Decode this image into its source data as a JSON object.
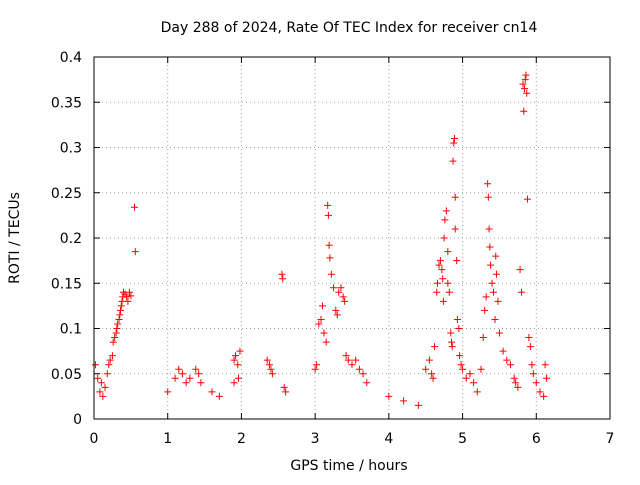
{
  "chart_data": {
    "type": "scatter",
    "title": "Day 288 of 2024, Rate Of TEC Index for receiver cn14",
    "xlabel": "GPS time / hours",
    "ylabel": "ROTI / TECUs",
    "xlim": [
      0,
      7
    ],
    "ylim": [
      0,
      0.4
    ],
    "x_ticks": [
      "0",
      "1",
      "2",
      "3",
      "4",
      "5",
      "6",
      "7"
    ],
    "y_ticks": [
      "0",
      "0.05",
      "0.1",
      "0.15",
      "0.2",
      "0.25",
      "0.3",
      "0.35",
      "0.4"
    ],
    "grid": true,
    "marker": "+",
    "marker_color": "#ff0000",
    "series": [
      {
        "name": "ROTI",
        "points": [
          [
            0.02,
            0.06
          ],
          [
            0.05,
            0.045
          ],
          [
            0.08,
            0.03
          ],
          [
            0.1,
            0.04
          ],
          [
            0.12,
            0.025
          ],
          [
            0.15,
            0.035
          ],
          [
            0.18,
            0.05
          ],
          [
            0.2,
            0.06
          ],
          [
            0.22,
            0.065
          ],
          [
            0.25,
            0.07
          ],
          [
            0.26,
            0.085
          ],
          [
            0.28,
            0.09
          ],
          [
            0.3,
            0.095
          ],
          [
            0.31,
            0.1
          ],
          [
            0.32,
            0.105
          ],
          [
            0.34,
            0.11
          ],
          [
            0.35,
            0.115
          ],
          [
            0.36,
            0.12
          ],
          [
            0.37,
            0.125
          ],
          [
            0.38,
            0.13
          ],
          [
            0.39,
            0.135
          ],
          [
            0.4,
            0.14
          ],
          [
            0.42,
            0.138
          ],
          [
            0.44,
            0.135
          ],
          [
            0.46,
            0.13
          ],
          [
            0.48,
            0.14
          ],
          [
            0.5,
            0.136
          ],
          [
            0.55,
            0.234
          ],
          [
            0.56,
            0.185
          ],
          [
            1.0,
            0.03
          ],
          [
            1.1,
            0.045
          ],
          [
            1.15,
            0.055
          ],
          [
            1.2,
            0.05
          ],
          [
            1.25,
            0.04
          ],
          [
            1.3,
            0.045
          ],
          [
            1.38,
            0.055
          ],
          [
            1.42,
            0.05
          ],
          [
            1.45,
            0.04
          ],
          [
            1.6,
            0.03
          ],
          [
            1.7,
            0.025
          ],
          [
            1.9,
            0.065
          ],
          [
            1.92,
            0.07
          ],
          [
            1.95,
            0.06
          ],
          [
            1.98,
            0.075
          ],
          [
            1.9,
            0.04
          ],
          [
            1.96,
            0.045
          ],
          [
            2.35,
            0.065
          ],
          [
            2.38,
            0.06
          ],
          [
            2.4,
            0.055
          ],
          [
            2.42,
            0.05
          ],
          [
            2.55,
            0.16
          ],
          [
            2.56,
            0.155
          ],
          [
            2.58,
            0.035
          ],
          [
            2.6,
            0.03
          ],
          [
            3.0,
            0.055
          ],
          [
            3.02,
            0.06
          ],
          [
            3.05,
            0.105
          ],
          [
            3.08,
            0.11
          ],
          [
            3.1,
            0.125
          ],
          [
            3.12,
            0.095
          ],
          [
            3.15,
            0.085
          ],
          [
            3.17,
            0.236
          ],
          [
            3.18,
            0.225
          ],
          [
            3.19,
            0.192
          ],
          [
            3.2,
            0.178
          ],
          [
            3.22,
            0.16
          ],
          [
            3.25,
            0.145
          ],
          [
            3.28,
            0.12
          ],
          [
            3.3,
            0.115
          ],
          [
            3.32,
            0.14
          ],
          [
            3.35,
            0.145
          ],
          [
            3.38,
            0.135
          ],
          [
            3.4,
            0.13
          ],
          [
            3.42,
            0.07
          ],
          [
            3.45,
            0.065
          ],
          [
            3.5,
            0.06
          ],
          [
            3.55,
            0.065
          ],
          [
            3.6,
            0.055
          ],
          [
            3.65,
            0.05
          ],
          [
            3.7,
            0.04
          ],
          [
            4.0,
            0.025
          ],
          [
            4.2,
            0.02
          ],
          [
            4.4,
            0.015
          ],
          [
            4.5,
            0.055
          ],
          [
            4.55,
            0.065
          ],
          [
            4.58,
            0.05
          ],
          [
            4.6,
            0.045
          ],
          [
            4.62,
            0.08
          ],
          [
            4.65,
            0.14
          ],
          [
            4.66,
            0.15
          ],
          [
            4.68,
            0.17
          ],
          [
            4.7,
            0.175
          ],
          [
            4.72,
            0.165
          ],
          [
            4.73,
            0.155
          ],
          [
            4.74,
            0.13
          ],
          [
            4.75,
            0.2
          ],
          [
            4.76,
            0.22
          ],
          [
            4.78,
            0.23
          ],
          [
            4.8,
            0.185
          ],
          [
            4.8,
            0.15
          ],
          [
            4.82,
            0.14
          ],
          [
            4.84,
            0.095
          ],
          [
            4.85,
            0.085
          ],
          [
            4.86,
            0.08
          ],
          [
            4.87,
            0.285
          ],
          [
            4.88,
            0.305
          ],
          [
            4.89,
            0.31
          ],
          [
            4.9,
            0.245
          ],
          [
            4.9,
            0.21
          ],
          [
            4.92,
            0.175
          ],
          [
            4.93,
            0.11
          ],
          [
            4.95,
            0.1
          ],
          [
            4.96,
            0.07
          ],
          [
            4.98,
            0.06
          ],
          [
            5.0,
            0.055
          ],
          [
            5.05,
            0.045
          ],
          [
            5.1,
            0.05
          ],
          [
            5.15,
            0.04
          ],
          [
            5.2,
            0.03
          ],
          [
            5.25,
            0.055
          ],
          [
            5.28,
            0.09
          ],
          [
            5.3,
            0.12
          ],
          [
            5.32,
            0.135
          ],
          [
            5.34,
            0.26
          ],
          [
            5.35,
            0.245
          ],
          [
            5.36,
            0.21
          ],
          [
            5.37,
            0.19
          ],
          [
            5.38,
            0.17
          ],
          [
            5.4,
            0.15
          ],
          [
            5.42,
            0.14
          ],
          [
            5.44,
            0.11
          ],
          [
            5.45,
            0.18
          ],
          [
            5.46,
            0.16
          ],
          [
            5.48,
            0.13
          ],
          [
            5.5,
            0.095
          ],
          [
            5.55,
            0.075
          ],
          [
            5.6,
            0.065
          ],
          [
            5.65,
            0.06
          ],
          [
            5.7,
            0.045
          ],
          [
            5.72,
            0.04
          ],
          [
            5.75,
            0.035
          ],
          [
            5.78,
            0.165
          ],
          [
            5.8,
            0.14
          ],
          [
            5.82,
            0.37
          ],
          [
            5.83,
            0.34
          ],
          [
            5.84,
            0.365
          ],
          [
            5.85,
            0.375
          ],
          [
            5.86,
            0.38
          ],
          [
            5.87,
            0.36
          ],
          [
            5.88,
            0.243
          ],
          [
            5.9,
            0.09
          ],
          [
            5.92,
            0.08
          ],
          [
            5.94,
            0.06
          ],
          [
            5.96,
            0.05
          ],
          [
            6.0,
            0.04
          ],
          [
            6.05,
            0.03
          ],
          [
            6.1,
            0.025
          ],
          [
            6.12,
            0.06
          ],
          [
            6.14,
            0.045
          ]
        ]
      }
    ]
  }
}
